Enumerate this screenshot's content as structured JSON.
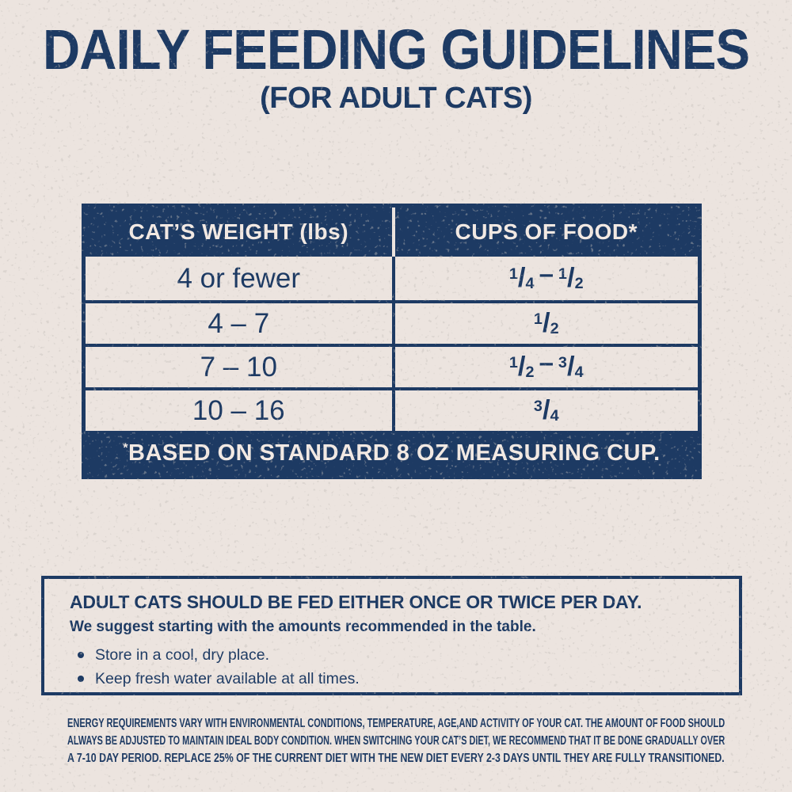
{
  "page": {
    "title": "DAILY FEEDING GUIDELINES",
    "subtitle": "(FOR ADULT CATS)"
  },
  "table": {
    "col1_header": "CAT’S WEIGHT (lbs)",
    "col2_header": "CUPS OF FOOD*",
    "rows": [
      {
        "weight": "4 or fewer",
        "cups": [
          {
            "num": "1",
            "den": "4"
          },
          {
            "num": "1",
            "den": "2"
          }
        ]
      },
      {
        "weight": "4 – 7",
        "cups": [
          {
            "num": "1",
            "den": "2"
          }
        ]
      },
      {
        "weight": "7 – 10",
        "cups": [
          {
            "num": "1",
            "den": "2"
          },
          {
            "num": "3",
            "den": "4"
          }
        ]
      },
      {
        "weight": "10 – 16",
        "cups": [
          {
            "num": "3",
            "den": "4"
          }
        ]
      }
    ],
    "cups_separator": "–",
    "footnote_mark": "*",
    "footnote_text": "BASED ON STANDARD 8 OZ MEASURING CUP."
  },
  "info_box": {
    "heading": "ADULT CATS SHOULD BE FED EITHER ONCE OR TWICE PER DAY.",
    "subheading": "We suggest starting with the amounts recommended in the table.",
    "bullets": [
      "Store in a cool, dry place.",
      "Keep fresh water available at all times."
    ]
  },
  "fine_print": {
    "lines": [
      "ENERGY REQUIREMENTS VARY WITH ENVIRONMENTAL CONDITIONS, TEMPERATURE, AGE,AND ACTIVITY OF YOUR CAT. THE AMOUNT OF FOOD SHOULD",
      "ALWAYS BE ADJUSTED TO MAINTAIN IDEAL BODY CONDITION. WHEN SWITCHING YOUR CAT’S DIET, WE RECOMMEND THAT IT BE DONE GRADUALLY OVER",
      "A 7-10 DAY PERIOD. REPLACE 25% OF THE CURRENT DIET WITH THE NEW DIET EVERY 2-3 DAYS UNTIL THEY ARE FULLY TRANSITIONED."
    ]
  },
  "colors": {
    "navy": "#1d3a63",
    "background_cream": "#ece4df",
    "cream_text": "#f2e9e3"
  }
}
